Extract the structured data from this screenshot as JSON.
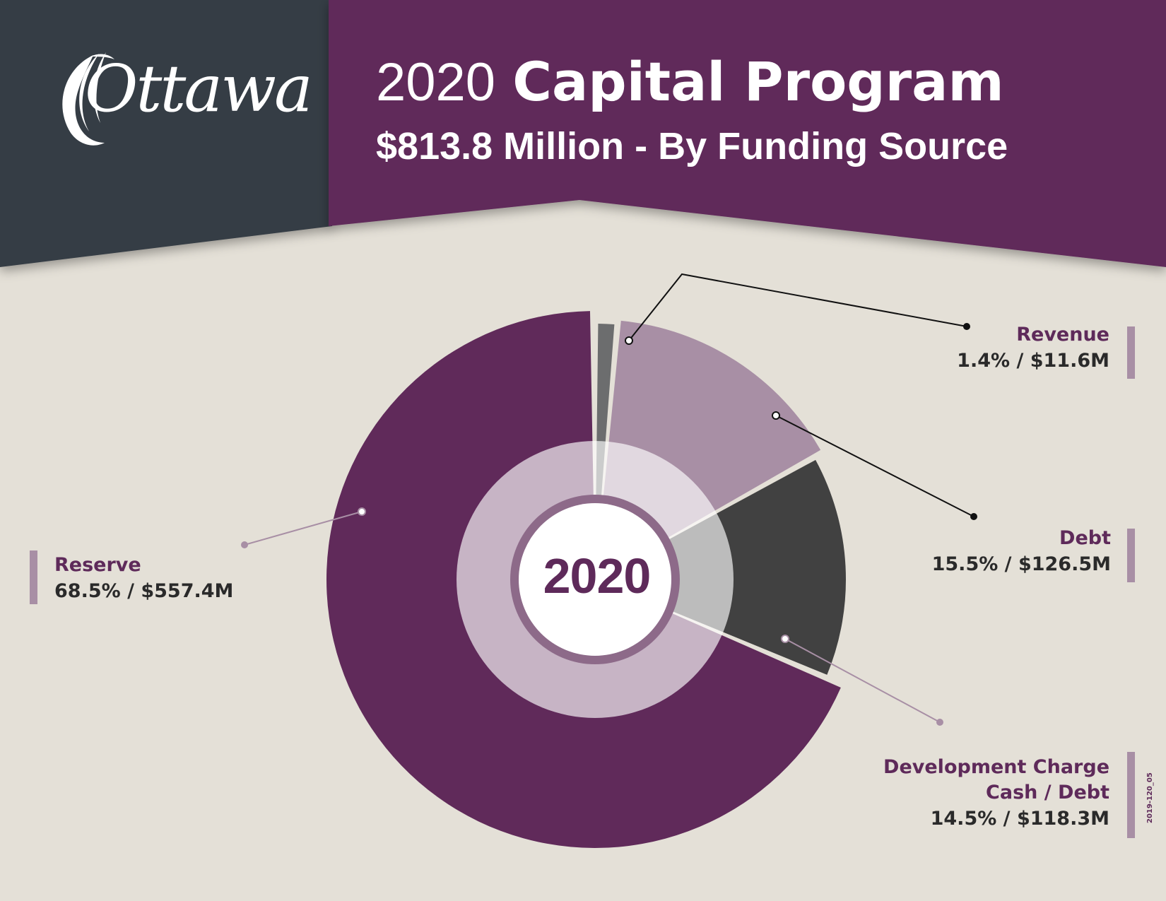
{
  "header": {
    "logo_text": "Ottawa",
    "title_year": "2020",
    "title_main": "Capital Program",
    "subtitle": "$813.8 Million - By Funding Source"
  },
  "colors": {
    "purple": "#602a5a",
    "dark_slate": "#363d45",
    "background": "#e4e0d7",
    "revenue": "#6c6d6e",
    "debt": "#a88fa5",
    "development_charge": "#414141",
    "reserve": "#602a5a",
    "accent_bar": "#a88fa5"
  },
  "chart_data": {
    "type": "pie",
    "center_label": "2020",
    "total": "$813.8 Million",
    "slices": [
      {
        "name": "Revenue",
        "percent": 1.4,
        "amount": "$11.6M",
        "value_label": "1.4% / $11.6M"
      },
      {
        "name": "Debt",
        "percent": 15.5,
        "amount": "$126.5M",
        "value_label": "15.5% / $126.5M"
      },
      {
        "name": "Development Charge Cash / Debt",
        "name_lines": [
          "Development Charge",
          "Cash / Debt"
        ],
        "percent": 14.5,
        "amount": "$118.3M",
        "value_label": "14.5% / $118.3M"
      },
      {
        "name": "Reserve",
        "percent": 68.5,
        "amount": "$557.4M",
        "value_label": "68.5% / $557.4M"
      }
    ]
  },
  "footer": {
    "code": "2019-120_05"
  }
}
